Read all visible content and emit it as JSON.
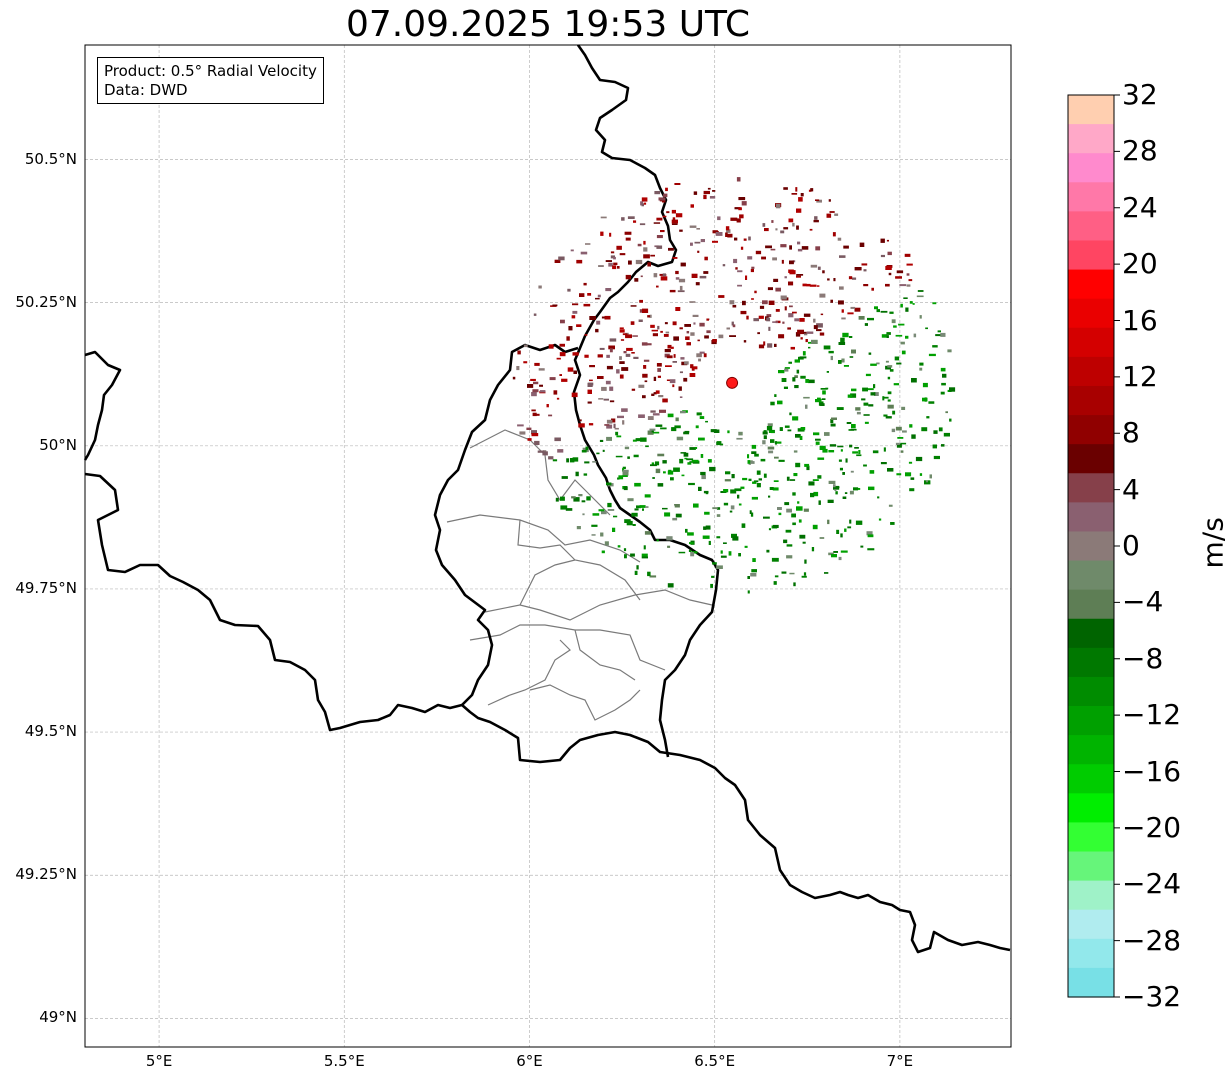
{
  "title": "07.09.2025 19:53 UTC",
  "info": {
    "product": "Product: 0.5° Radial Velocity",
    "data": "Data: DWD"
  },
  "map": {
    "lon_range": [
      4.8,
      7.3
    ],
    "lat_range": [
      48.95,
      50.7
    ],
    "radar_site": {
      "lon": 6.547,
      "lat": 50.11
    },
    "lat_ticks": [
      {
        "value": 50.5,
        "label": "50.5°N"
      },
      {
        "value": 50.25,
        "label": "50.25°N"
      },
      {
        "value": 50.0,
        "label": "50°N"
      },
      {
        "value": 49.75,
        "label": "49.75°N"
      },
      {
        "value": 49.5,
        "label": "49.5°N"
      },
      {
        "value": 49.25,
        "label": "49.25°N"
      },
      {
        "value": 49.0,
        "label": "49°N"
      }
    ],
    "lon_ticks": [
      {
        "value": 5.0,
        "label": "5°E"
      },
      {
        "value": 5.5,
        "label": "5.5°E"
      },
      {
        "value": 6.0,
        "label": "6°E"
      },
      {
        "value": 6.5,
        "label": "6.5°E"
      },
      {
        "value": 7.0,
        "label": "7°E"
      }
    ]
  },
  "colorbar": {
    "label": "m/s",
    "min": -32,
    "max": 32,
    "tick_labels": [
      "32",
      "28",
      "24",
      "20",
      "16",
      "12",
      "8",
      "4",
      "0",
      "−4",
      "−8",
      "−12",
      "−16",
      "−20",
      "−24",
      "−28",
      "−32"
    ],
    "colors_top_to_bottom": [
      "#ffcfb0",
      "#ffa8c8",
      "#ff8acd",
      "#ff78a8",
      "#ff5f85",
      "#ff4562",
      "#ff0000",
      "#ea0000",
      "#d40000",
      "#be0000",
      "#a80000",
      "#900000",
      "#6a0000",
      "#86404a",
      "#8a6070",
      "#8b7a78",
      "#6f8a6a",
      "#5e7e55",
      "#006400",
      "#007800",
      "#008c00",
      "#00a000",
      "#00b400",
      "#00cc00",
      "#00ee00",
      "#33ff33",
      "#66f57a",
      "#9ff2c8",
      "#b0ecef",
      "#92e8eb",
      "#78e0e6"
    ]
  }
}
